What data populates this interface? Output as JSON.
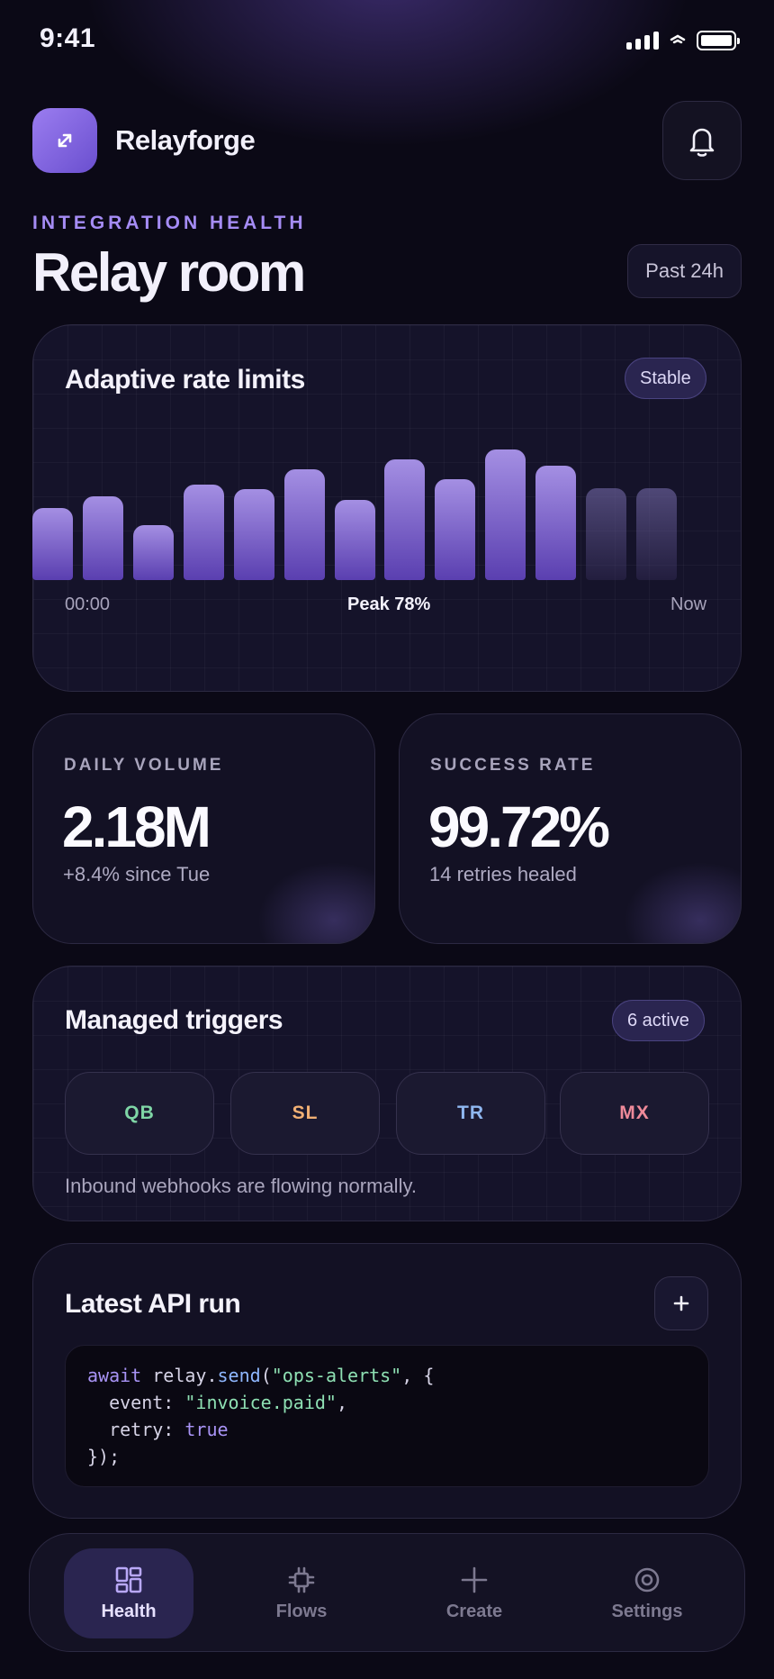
{
  "status_bar": {
    "time": "9:41"
  },
  "app": {
    "name": "Relayforge"
  },
  "header": {
    "eyebrow": "INTEGRATION HEALTH",
    "title": "Relay room",
    "range_label": "Past 24h"
  },
  "rate_card": {
    "title": "Adaptive rate limits",
    "badge": "Stable",
    "axis_start": "00:00",
    "peak_label": "Peak 78%",
    "axis_end": "Now"
  },
  "chart_data": {
    "type": "bar",
    "title": "Adaptive rate limits",
    "values": [
      43,
      50,
      33,
      57,
      54,
      66,
      48,
      72,
      60,
      78,
      68,
      55,
      55
    ],
    "highlighted": [
      true,
      true,
      true,
      true,
      true,
      true,
      true,
      true,
      true,
      true,
      true,
      false,
      false
    ],
    "ylim": [
      0,
      100
    ],
    "x_start_label": "00:00",
    "x_end_label": "Now"
  },
  "stats": [
    {
      "label": "DAILY VOLUME",
      "value": "2.18M",
      "sub": "+8.4% since Tue"
    },
    {
      "label": "SUCCESS RATE",
      "value": "99.72%",
      "sub": "14 retries healed"
    }
  ],
  "triggers": {
    "title": "Managed triggers",
    "badge": "6 active",
    "items": [
      {
        "code": "QB",
        "color": "#7fd6a6"
      },
      {
        "code": "SL",
        "color": "#f2b074"
      },
      {
        "code": "TR",
        "color": "#8fb7f0"
      },
      {
        "code": "MX",
        "color": "#ef8a9a"
      }
    ],
    "note": "Inbound webhooks are flowing normally."
  },
  "api": {
    "title": "Latest API run",
    "code": {
      "l1_kw": "await",
      "l1_obj": " relay.",
      "l1_fn": "send",
      "l1_open": "(",
      "l1_str": "\"ops-alerts\"",
      "l1_rest": ", {",
      "l2_key": "  event: ",
      "l2_str": "\"invoice.paid\"",
      "l2_rest": ",",
      "l3_key": "  retry: ",
      "l3_val": "true",
      "l4": "});"
    }
  },
  "tabs": [
    {
      "label": "Health",
      "icon": "dashboard-icon"
    },
    {
      "label": "Flows",
      "icon": "chip-icon"
    },
    {
      "label": "Create",
      "icon": "plus-icon"
    },
    {
      "label": "Settings",
      "icon": "settings-icon"
    }
  ],
  "colors": {
    "accent": "#a58cf5",
    "background": "#0b0916"
  }
}
